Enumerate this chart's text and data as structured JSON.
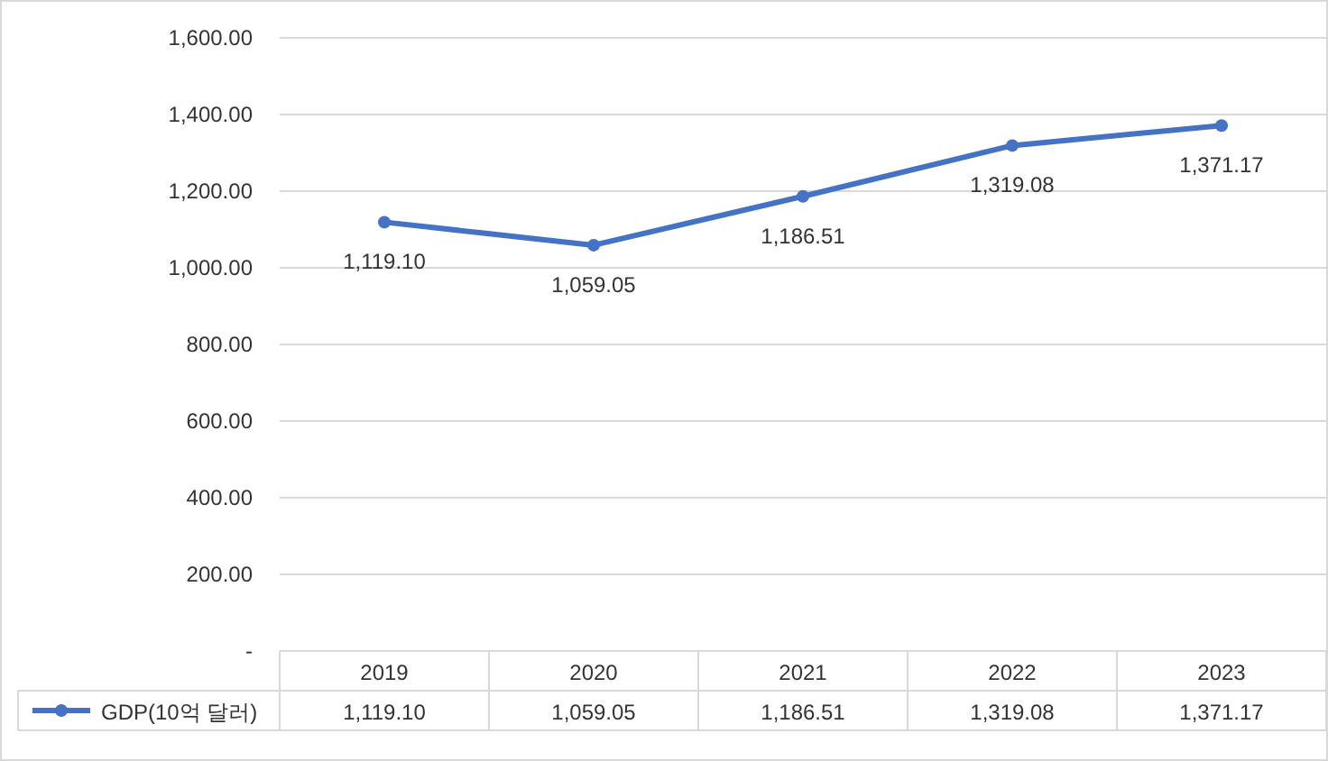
{
  "chart_data": {
    "type": "line",
    "categories": [
      "2019",
      "2020",
      "2021",
      "2022",
      "2023"
    ],
    "series": [
      {
        "name": "GDP(10억 달러)",
        "color": "#4472c4",
        "values": [
          1119.1,
          1059.05,
          1186.51,
          1319.08,
          1371.17
        ],
        "value_labels": [
          "1,119.10",
          "1,059.05",
          "1,186.51",
          "1,319.08",
          "1,371.17"
        ]
      }
    ],
    "ylim": [
      0,
      1600
    ],
    "yticks": [
      {
        "value": 0,
        "label": "-"
      },
      {
        "value": 200,
        "label": "200.00"
      },
      {
        "value": 400,
        "label": "400.00"
      },
      {
        "value": 600,
        "label": "600.00"
      },
      {
        "value": 800,
        "label": "800.00"
      },
      {
        "value": 1000,
        "label": "1,000.00"
      },
      {
        "value": 1200,
        "label": "1,200.00"
      },
      {
        "value": 1400,
        "label": "1,400.00"
      },
      {
        "value": 1600,
        "label": "1,600.00"
      }
    ],
    "grid": "y",
    "legend": "bottom",
    "marker": "circle",
    "line_style": "solid"
  }
}
